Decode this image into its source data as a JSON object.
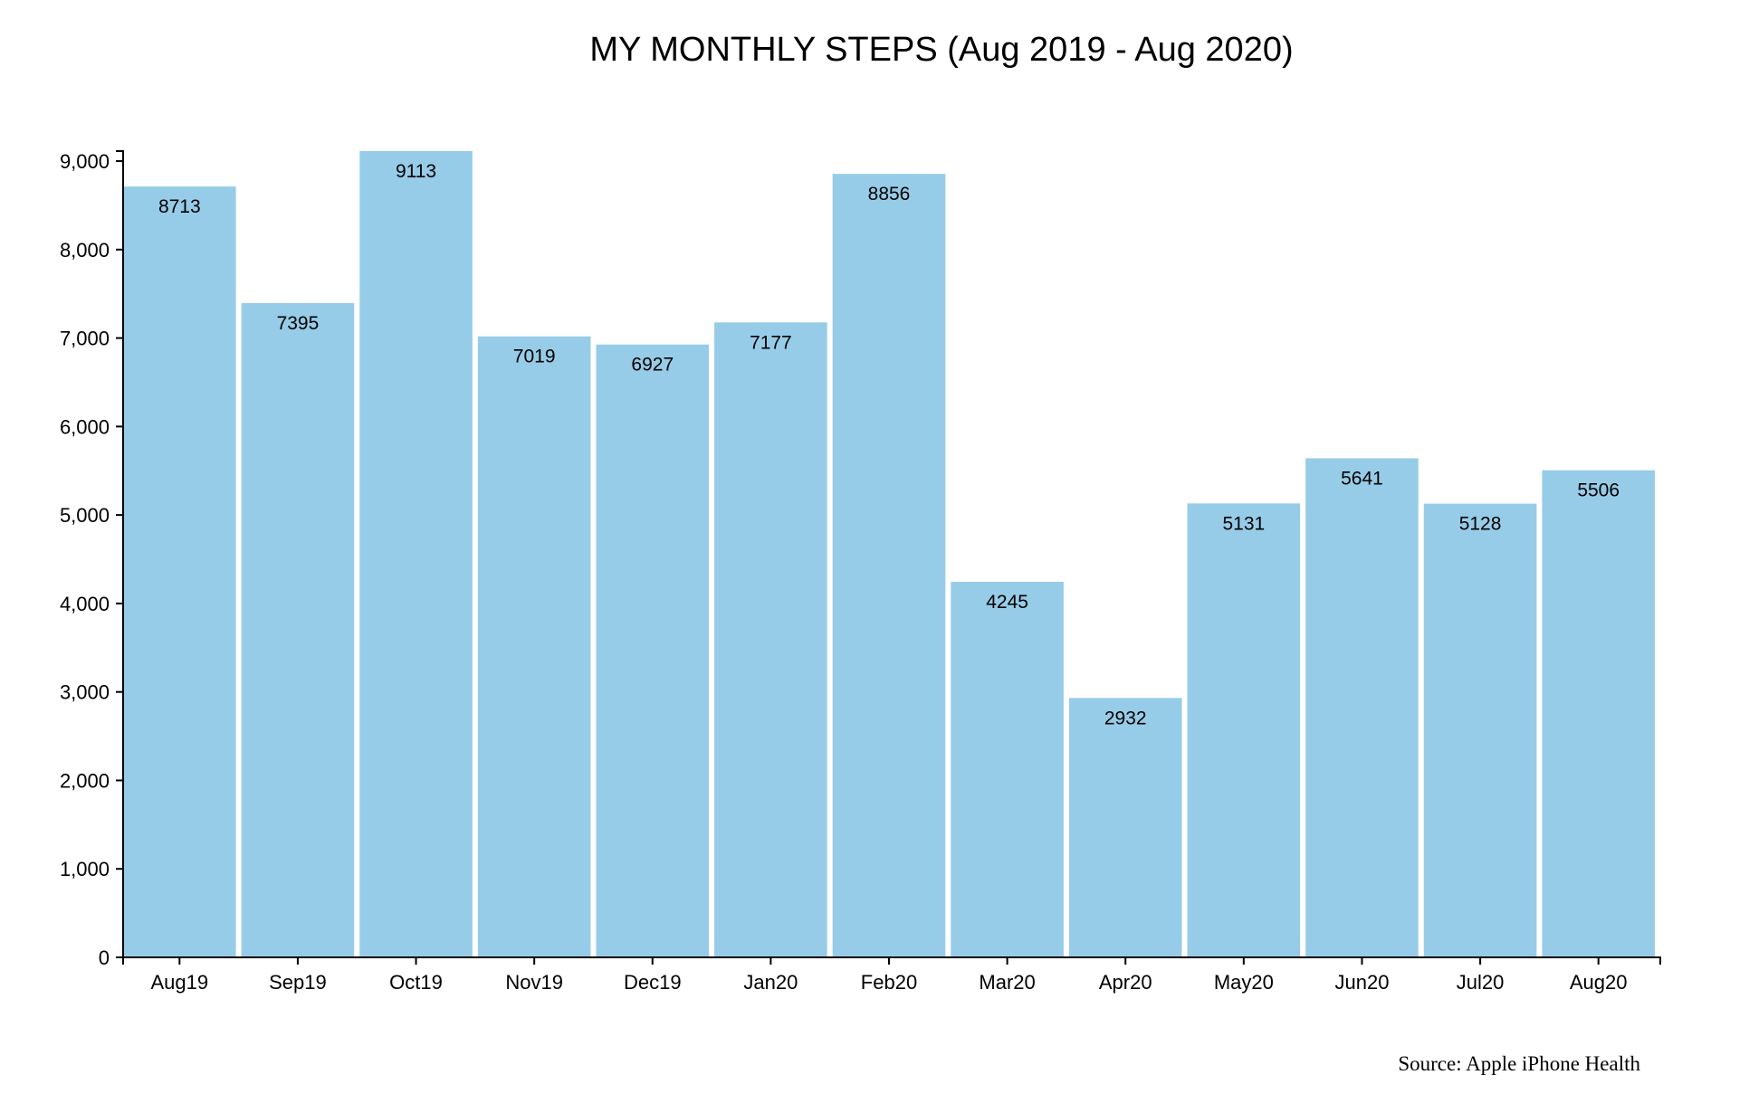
{
  "chart_data": {
    "type": "bar",
    "title": "MY MONTHLY STEPS (Aug 2019 - Aug 2020)",
    "xlabel": "",
    "ylabel": "",
    "categories": [
      "Aug19",
      "Sep19",
      "Oct19",
      "Nov19",
      "Dec19",
      "Jan20",
      "Feb20",
      "Mar20",
      "Apr20",
      "May20",
      "Jun20",
      "Jul20",
      "Aug20"
    ],
    "values": [
      8713,
      7395,
      9113,
      7019,
      6927,
      7177,
      8856,
      4245,
      2932,
      5131,
      5641,
      5128,
      5506
    ],
    "ylim": [
      0,
      9113
    ],
    "yticks": [
      0,
      1000,
      2000,
      3000,
      4000,
      5000,
      6000,
      7000,
      8000,
      9000
    ],
    "ytick_labels": [
      "0",
      "1,000",
      "2,000",
      "3,000",
      "4,000",
      "5,000",
      "6,000",
      "7,000",
      "8,000",
      "9,000"
    ],
    "bar_color": "#97cce8",
    "grid": false,
    "legend": "none"
  },
  "source_note": "Source: Apple iPhone Health"
}
